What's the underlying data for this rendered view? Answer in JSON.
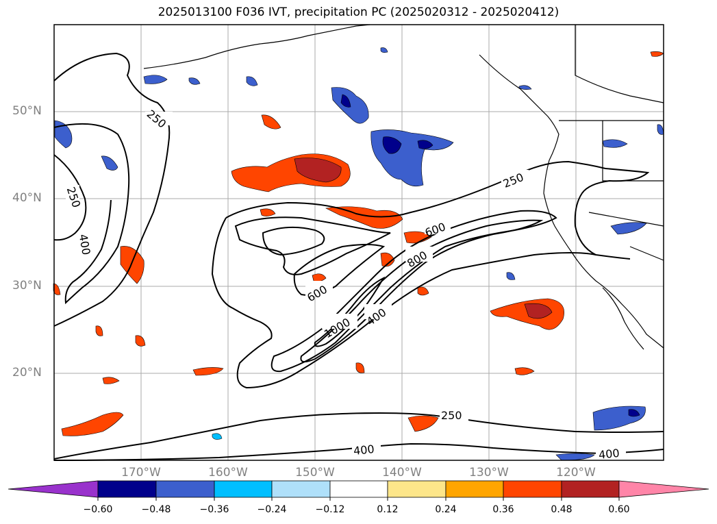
{
  "title": "2025013100 F036 IVT, precipitation PC (2025020312 - 2025020412)",
  "map": {
    "lat_labels": [
      "50°N",
      "40°N",
      "30°N",
      "20°N"
    ],
    "lon_labels": [
      "170°W",
      "160°W",
      "150°W",
      "140°W",
      "130°W",
      "120°W"
    ],
    "contour_labels": [
      "250",
      "250",
      "250",
      "400",
      "600",
      "600",
      "800",
      "1000",
      "400",
      "250",
      "400",
      "400"
    ]
  },
  "colorbar": {
    "ticks": [
      "−0.60",
      "−0.48",
      "−0.36",
      "−0.24",
      "−0.12",
      "0.12",
      "0.24",
      "0.36",
      "0.48",
      "0.60"
    ],
    "colors": [
      "#9932cc",
      "#00008b",
      "#3c5fcd",
      "#00bfff",
      "#afe0fa",
      "#ffffff",
      "#fde68a",
      "#ffa500",
      "#ff4500",
      "#b22222",
      "#ff85a8"
    ]
  }
}
